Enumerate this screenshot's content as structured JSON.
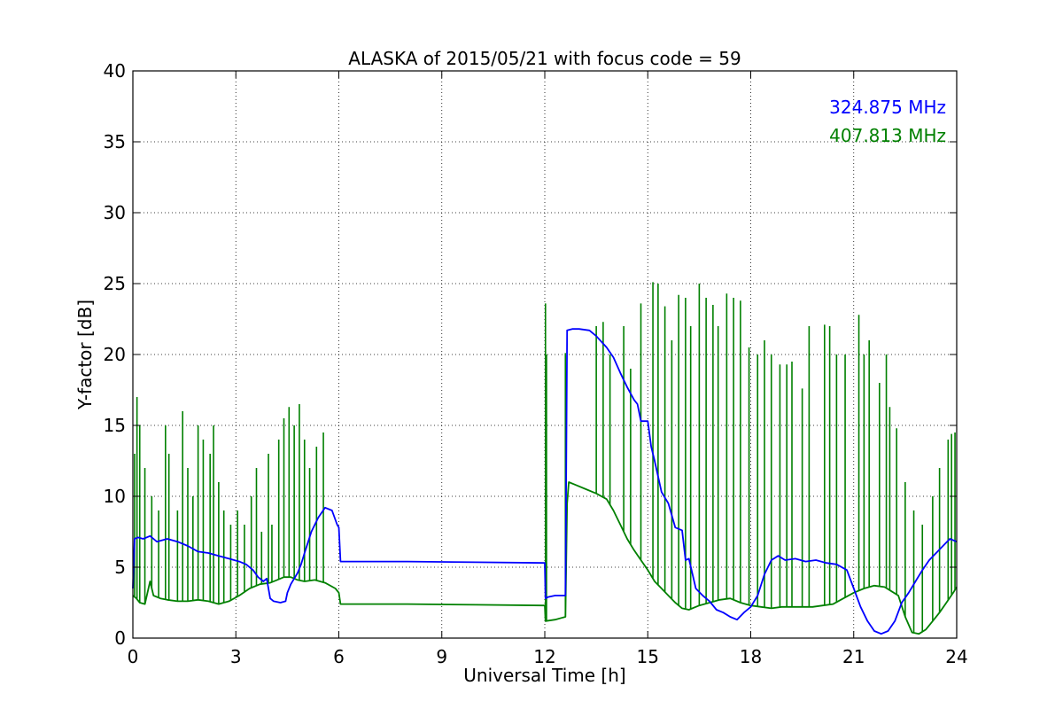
{
  "chart_data": {
    "type": "line",
    "title": "ALASKA of 2015/05/21 with focus code = 59",
    "xlabel": "Universal Time [h]",
    "ylabel": "Y-factor [dB]",
    "xlim": [
      0,
      24
    ],
    "ylim": [
      0,
      40
    ],
    "xticks": [
      0,
      3,
      6,
      9,
      12,
      15,
      18,
      21,
      24
    ],
    "yticks": [
      0,
      5,
      10,
      15,
      20,
      25,
      30,
      35,
      40
    ],
    "grid": true,
    "legend_position": "top-right",
    "series": [
      {
        "name": "324.875 MHz",
        "color": "#0000ff",
        "x": [
          0,
          0.05,
          0.15,
          0.3,
          0.5,
          0.7,
          1.0,
          1.3,
          1.6,
          1.9,
          2.2,
          2.5,
          2.8,
          3.1,
          3.3,
          3.5,
          3.65,
          3.8,
          3.9,
          4.0,
          4.1,
          4.3,
          4.45,
          4.5,
          4.6,
          4.8,
          4.9,
          5.0,
          5.2,
          5.4,
          5.6,
          5.8,
          5.95,
          6.0,
          6.05,
          8.0,
          10.0,
          12.0,
          12.02,
          12.1,
          12.3,
          12.6,
          12.65,
          12.8,
          13.0,
          13.3,
          13.5,
          13.8,
          14.0,
          14.2,
          14.4,
          14.6,
          14.7,
          14.8,
          15.0,
          15.1,
          15.2,
          15.4,
          15.6,
          15.8,
          16.0,
          16.1,
          16.2,
          16.4,
          16.6,
          16.8,
          17.0,
          17.2,
          17.4,
          17.6,
          17.8,
          18.0,
          18.2,
          18.4,
          18.6,
          18.8,
          19.0,
          19.3,
          19.6,
          19.9,
          20.2,
          20.5,
          20.8,
          21.0,
          21.2,
          21.4,
          21.6,
          21.8,
          22.0,
          22.2,
          22.4,
          22.6,
          22.8,
          23.0,
          23.2,
          23.4,
          23.6,
          23.8,
          24.0
        ],
        "y": [
          3.5,
          7.0,
          7.1,
          7.0,
          7.2,
          6.8,
          7.0,
          6.8,
          6.5,
          6.1,
          6.0,
          5.8,
          5.6,
          5.4,
          5.2,
          4.8,
          4.3,
          4.0,
          4.2,
          2.8,
          2.6,
          2.5,
          2.6,
          3.2,
          3.8,
          4.6,
          5.2,
          6.0,
          7.5,
          8.5,
          9.2,
          9.0,
          8.0,
          7.8,
          5.4,
          5.4,
          5.35,
          5.3,
          2.8,
          2.9,
          3.0,
          3.0,
          21.7,
          21.8,
          21.8,
          21.7,
          21.3,
          20.5,
          19.8,
          18.7,
          17.7,
          16.8,
          16.5,
          15.3,
          15.3,
          13.5,
          12.5,
          10.3,
          9.5,
          7.8,
          7.6,
          5.5,
          5.6,
          3.5,
          3.0,
          2.6,
          2.0,
          1.8,
          1.5,
          1.3,
          1.8,
          2.2,
          3.0,
          4.5,
          5.5,
          5.8,
          5.5,
          5.6,
          5.4,
          5.5,
          5.3,
          5.2,
          4.8,
          3.5,
          2.2,
          1.2,
          0.5,
          0.3,
          0.5,
          1.2,
          2.5,
          3.2,
          4.0,
          4.8,
          5.5,
          6.0,
          6.5,
          7.0,
          6.8
        ]
      },
      {
        "name": "407.813 MHz",
        "color": "#008000",
        "x": [
          0,
          0.1,
          0.2,
          0.35,
          0.5,
          0.6,
          0.8,
          1.0,
          1.3,
          1.6,
          1.9,
          2.2,
          2.5,
          2.8,
          3.1,
          3.4,
          3.7,
          4.0,
          4.2,
          4.4,
          4.6,
          4.8,
          5.0,
          5.3,
          5.6,
          5.9,
          6.0,
          6.05,
          8.0,
          10.0,
          11.95,
          12.0,
          12.02,
          12.3,
          12.6,
          12.65,
          12.7,
          12.9,
          13.2,
          13.5,
          13.8,
          14.0,
          14.2,
          14.4,
          14.6,
          14.8,
          15.0,
          15.2,
          15.4,
          15.6,
          15.8,
          16.0,
          16.2,
          16.5,
          16.8,
          17.1,
          17.4,
          17.7,
          18.0,
          18.3,
          18.6,
          18.9,
          19.2,
          19.5,
          19.8,
          20.1,
          20.4,
          20.7,
          21.0,
          21.3,
          21.6,
          21.9,
          22.1,
          22.3,
          22.5,
          22.7,
          22.9,
          23.1,
          23.3,
          23.5,
          23.7,
          23.9,
          24.0
        ],
        "y": [
          3.0,
          2.8,
          2.5,
          2.4,
          4.0,
          3.0,
          2.8,
          2.7,
          2.6,
          2.6,
          2.7,
          2.6,
          2.4,
          2.6,
          3.0,
          3.5,
          3.8,
          3.9,
          4.1,
          4.3,
          4.3,
          4.1,
          4.0,
          4.1,
          3.9,
          3.5,
          3.2,
          2.4,
          2.4,
          2.35,
          2.3,
          2.3,
          1.2,
          1.3,
          1.5,
          9.5,
          11.0,
          10.8,
          10.5,
          10.2,
          9.8,
          9.0,
          8.0,
          7.0,
          6.2,
          5.5,
          4.8,
          4.0,
          3.5,
          3.0,
          2.5,
          2.1,
          2.0,
          2.3,
          2.5,
          2.7,
          2.8,
          2.5,
          2.3,
          2.2,
          2.1,
          2.2,
          2.2,
          2.2,
          2.2,
          2.3,
          2.4,
          2.8,
          3.2,
          3.5,
          3.7,
          3.6,
          3.3,
          3.0,
          1.5,
          0.4,
          0.3,
          0.6,
          1.2,
          1.8,
          2.5,
          3.2,
          3.6
        ]
      },
      {
        "name": "",
        "color": "#008000",
        "spikes": true,
        "x": [
          0.05,
          0.12,
          0.2,
          0.35,
          0.55,
          0.75,
          0.95,
          1.05,
          1.3,
          1.45,
          1.6,
          1.75,
          1.9,
          2.05,
          2.25,
          2.35,
          2.5,
          2.65,
          2.85,
          3.05,
          3.25,
          3.45,
          3.6,
          3.75,
          3.95,
          4.05,
          4.25,
          4.4,
          4.55,
          4.7,
          4.85,
          5.0,
          5.15,
          5.35,
          5.55,
          12.02,
          12.05,
          12.6,
          13.5,
          13.7,
          13.9,
          14.3,
          14.5,
          14.8,
          15.15,
          15.3,
          15.5,
          15.7,
          15.9,
          16.1,
          16.25,
          16.5,
          16.7,
          16.9,
          17.05,
          17.3,
          17.5,
          17.7,
          17.95,
          18.2,
          18.4,
          18.6,
          18.85,
          19.05,
          19.2,
          19.5,
          19.7,
          20.15,
          20.3,
          20.5,
          20.75,
          21.15,
          21.3,
          21.45,
          21.75,
          21.95,
          22.05,
          22.25,
          22.5,
          22.75,
          23.0,
          23.3,
          23.5,
          23.75,
          23.85,
          23.95
        ],
        "y": [
          13.0,
          17.0,
          15.0,
          12.0,
          10.0,
          9.0,
          15.0,
          13.0,
          9.0,
          16.0,
          12.0,
          10.0,
          15.0,
          14.0,
          13.0,
          15.0,
          11.0,
          9.0,
          8.0,
          9.0,
          8.0,
          10.0,
          12.0,
          7.5,
          13.0,
          8.0,
          14.0,
          15.5,
          16.3,
          15.0,
          16.5,
          14.0,
          12.0,
          13.5,
          14.5,
          23.6,
          20.0,
          20.1,
          22.0,
          22.3,
          20.0,
          22.0,
          19.0,
          23.6,
          25.1,
          25.0,
          23.4,
          21.0,
          24.2,
          24.0,
          22.0,
          25.0,
          24.0,
          23.5,
          22.0,
          24.3,
          24.0,
          23.8,
          20.5,
          20.0,
          21.0,
          20.0,
          19.3,
          19.3,
          19.5,
          17.6,
          22.0,
          22.1,
          22.0,
          20.0,
          20.0,
          22.8,
          20.0,
          21.0,
          18.0,
          20.0,
          16.3,
          14.8,
          11.0,
          9.0,
          8.0,
          10.0,
          12.0,
          14.0,
          14.4,
          14.5
        ]
      }
    ],
    "legend": [
      {
        "label": "324.875 MHz",
        "color": "#0000ff"
      },
      {
        "label": "407.813 MHz",
        "color": "#008000"
      }
    ]
  }
}
